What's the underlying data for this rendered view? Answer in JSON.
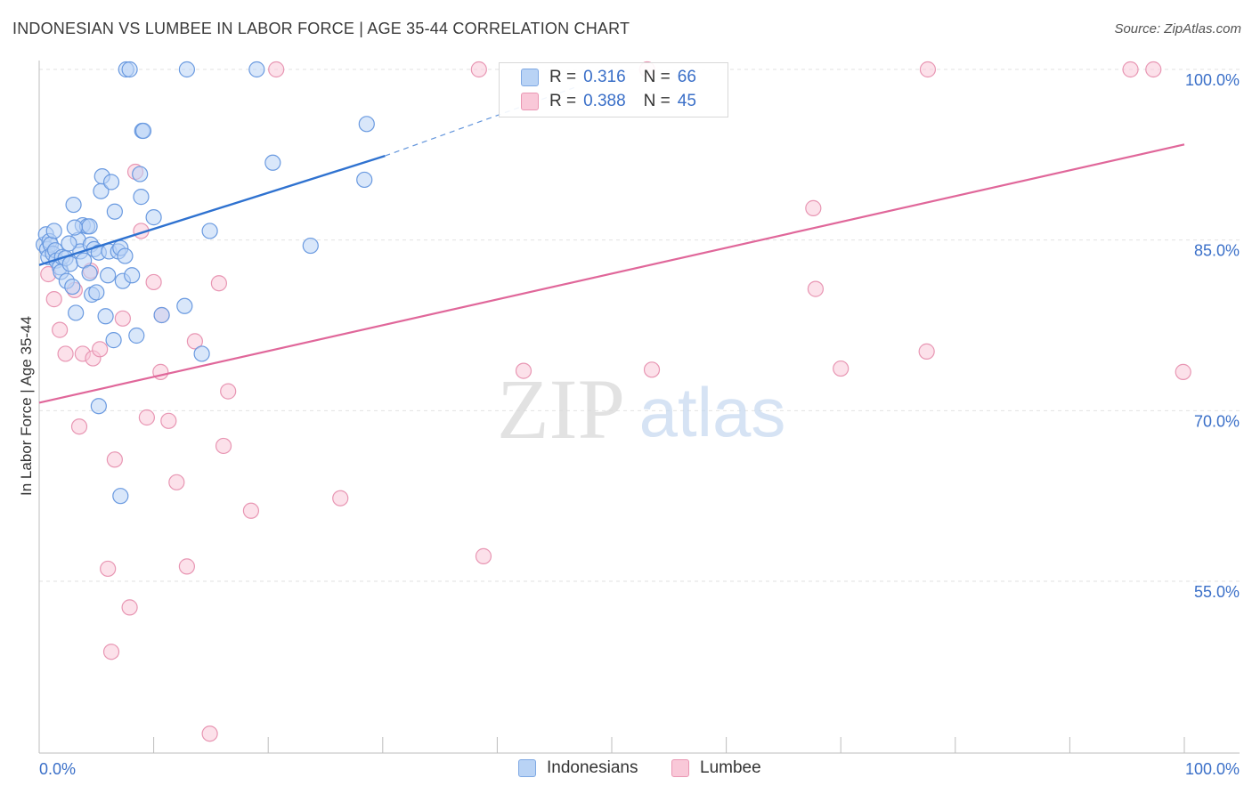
{
  "title": "INDONESIAN VS LUMBEE IN LABOR FORCE | AGE 35-44 CORRELATION CHART",
  "source": "Source: ZipAtlas.com",
  "watermark": {
    "zip": "ZIP",
    "atlas": "atlas"
  },
  "legend_top": [
    {
      "r_label": "R =",
      "r_value": "0.316",
      "n_label": "N =",
      "n_value": "66"
    },
    {
      "r_label": "R =",
      "r_value": "0.388",
      "n_label": "N =",
      "n_value": "45"
    }
  ],
  "legend_bottom": [
    "Indonesians",
    "Lumbee"
  ],
  "colors": {
    "blue_fill": "#b9d3f5",
    "blue_stroke": "#6a9ae0",
    "blue_line": "#2f72d0",
    "pink_fill": "#f9c8d8",
    "pink_stroke": "#e896b3",
    "pink_line": "#e0679a",
    "tick_label": "#3a6fc8",
    "grid": "#e2e2e2"
  },
  "chart_data": {
    "type": "scatter",
    "title": "INDONESIAN VS LUMBEE IN LABOR FORCE | AGE 35-44 CORRELATION CHART",
    "xlabel": "",
    "ylabel": "In Labor Force | Age 35-44",
    "xlim": [
      0,
      100
    ],
    "ylim": [
      40,
      102
    ],
    "x_tick_labels": [
      "0.0%",
      "100.0%"
    ],
    "y_ticks": [
      {
        "value": 55,
        "label": "55.0%"
      },
      {
        "value": 70,
        "label": "70.0%"
      },
      {
        "value": 85,
        "label": "85.0%"
      },
      {
        "value": 100,
        "label": "100.0%"
      }
    ],
    "series": [
      {
        "name": "Indonesians",
        "R": 0.316,
        "N": 66,
        "trend": {
          "x0": 0,
          "y0": 82.8,
          "x1": 30.2,
          "y1": 92.4,
          "dash_to_x": 47,
          "dash_to_y": 98.5
        },
        "points": [
          [
            0.4,
            84.6
          ],
          [
            0.6,
            85.5
          ],
          [
            0.7,
            84.2
          ],
          [
            0.8,
            83.5
          ],
          [
            0.9,
            84.9
          ],
          [
            1.0,
            84.6
          ],
          [
            1.2,
            83.8
          ],
          [
            1.3,
            85.8
          ],
          [
            1.4,
            84.1
          ],
          [
            1.5,
            83.2
          ],
          [
            1.8,
            82.6
          ],
          [
            1.9,
            82.2
          ],
          [
            2.0,
            83.5
          ],
          [
            2.3,
            83.4
          ],
          [
            2.4,
            81.4
          ],
          [
            2.7,
            82.9
          ],
          [
            2.9,
            80.9
          ],
          [
            3.0,
            88.1
          ],
          [
            3.2,
            78.6
          ],
          [
            3.4,
            85.0
          ],
          [
            3.6,
            84.0
          ],
          [
            3.8,
            86.3
          ],
          [
            3.9,
            83.2
          ],
          [
            4.2,
            86.2
          ],
          [
            4.4,
            82.1
          ],
          [
            4.6,
            80.2
          ],
          [
            4.5,
            84.6
          ],
          [
            4.8,
            84.2
          ],
          [
            5.0,
            80.4
          ],
          [
            5.2,
            83.9
          ],
          [
            5.4,
            89.3
          ],
          [
            5.5,
            90.6
          ],
          [
            5.8,
            78.3
          ],
          [
            6.0,
            81.9
          ],
          [
            6.1,
            84.0
          ],
          [
            6.3,
            90.1
          ],
          [
            6.5,
            76.2
          ],
          [
            6.6,
            87.5
          ],
          [
            6.9,
            84.0
          ],
          [
            7.1,
            84.3
          ],
          [
            7.3,
            81.4
          ],
          [
            7.5,
            83.6
          ],
          [
            7.6,
            100.0
          ],
          [
            7.9,
            100.0
          ],
          [
            8.1,
            81.9
          ],
          [
            8.5,
            76.6
          ],
          [
            8.8,
            90.8
          ],
          [
            8.9,
            88.8
          ],
          [
            9.0,
            94.6
          ],
          [
            9.1,
            94.6
          ],
          [
            10.0,
            87.0
          ],
          [
            10.7,
            78.4
          ],
          [
            12.7,
            79.2
          ],
          [
            12.9,
            100.0
          ],
          [
            14.2,
            75.0
          ],
          [
            14.9,
            85.8
          ],
          [
            19.0,
            100.0
          ],
          [
            20.4,
            91.8
          ],
          [
            23.7,
            84.5
          ],
          [
            28.4,
            90.3
          ],
          [
            28.6,
            95.2
          ],
          [
            7.1,
            62.5
          ],
          [
            5.2,
            70.4
          ],
          [
            4.4,
            86.2
          ],
          [
            3.1,
            86.1
          ],
          [
            2.6,
            84.7
          ]
        ]
      },
      {
        "name": "Lumbee",
        "R": 0.388,
        "N": 45,
        "trend": {
          "x0": 0,
          "y0": 70.7,
          "x1": 100,
          "y1": 93.4
        },
        "points": [
          [
            0.8,
            82.0
          ],
          [
            1.3,
            79.8
          ],
          [
            1.8,
            77.1
          ],
          [
            2.3,
            75.0
          ],
          [
            3.1,
            80.6
          ],
          [
            3.5,
            68.6
          ],
          [
            3.8,
            75.0
          ],
          [
            4.5,
            82.3
          ],
          [
            4.7,
            74.6
          ],
          [
            5.3,
            75.4
          ],
          [
            6.0,
            56.1
          ],
          [
            6.3,
            48.8
          ],
          [
            6.6,
            65.7
          ],
          [
            7.3,
            78.1
          ],
          [
            7.9,
            52.7
          ],
          [
            8.4,
            91.0
          ],
          [
            8.9,
            85.8
          ],
          [
            9.4,
            69.4
          ],
          [
            10.0,
            81.3
          ],
          [
            10.6,
            73.4
          ],
          [
            10.7,
            78.4
          ],
          [
            11.3,
            69.1
          ],
          [
            12.0,
            63.7
          ],
          [
            12.9,
            56.3
          ],
          [
            13.6,
            76.1
          ],
          [
            14.9,
            41.6
          ],
          [
            15.7,
            81.2
          ],
          [
            16.1,
            66.9
          ],
          [
            16.5,
            71.7
          ],
          [
            18.5,
            61.2
          ],
          [
            20.7,
            100.0
          ],
          [
            26.3,
            62.3
          ],
          [
            38.8,
            57.2
          ],
          [
            38.4,
            100.0
          ],
          [
            42.3,
            73.5
          ],
          [
            53.1,
            100.0
          ],
          [
            53.5,
            73.6
          ],
          [
            67.6,
            87.8
          ],
          [
            67.8,
            80.7
          ],
          [
            70.0,
            73.7
          ],
          [
            77.6,
            100.0
          ],
          [
            77.5,
            75.2
          ],
          [
            95.3,
            100.0
          ],
          [
            97.3,
            100.0
          ],
          [
            99.9,
            73.4
          ]
        ]
      }
    ]
  }
}
